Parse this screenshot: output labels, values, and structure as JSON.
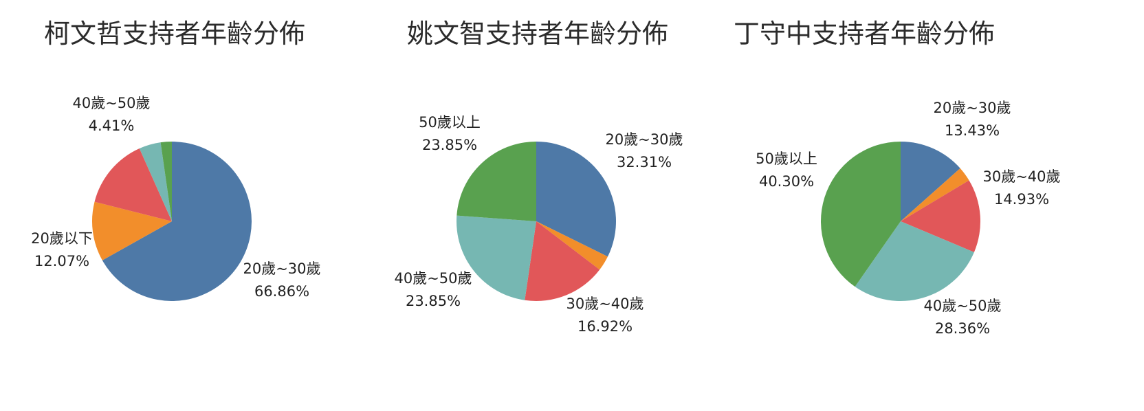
{
  "chart_data": [
    {
      "type": "pie",
      "title": "柯文哲支持者年齡分佈",
      "colors": [
        "#4e79a7",
        "#f28e2b",
        "#e15759",
        "#76b7b2",
        "#59a14f"
      ],
      "slices": [
        {
          "name": "20歲~30歲",
          "value": 66.86,
          "value_label": "66.86%",
          "color": "#4e79a7",
          "labeled": true
        },
        {
          "name": "20歲以下",
          "value": 12.07,
          "value_label": "12.07%",
          "color": "#f28e2b",
          "labeled": true
        },
        {
          "name": "",
          "value": 14.4,
          "value_label": "",
          "color": "#e15759",
          "labeled": false
        },
        {
          "name": "40歲~50歲",
          "value": 4.41,
          "value_label": "4.41%",
          "color": "#76b7b2",
          "labeled": true
        },
        {
          "name": "",
          "value": 2.26,
          "value_label": "",
          "color": "#59a14f",
          "labeled": false
        }
      ]
    },
    {
      "type": "pie",
      "title": "姚文智支持者年齡分佈",
      "colors": [
        "#4e79a7",
        "#f28e2b",
        "#e15759",
        "#76b7b2",
        "#59a14f"
      ],
      "slices": [
        {
          "name": "20歲~30歲",
          "value": 32.31,
          "value_label": "32.31%",
          "color": "#4e79a7",
          "labeled": true
        },
        {
          "name": "",
          "value": 3.07,
          "value_label": "",
          "color": "#f28e2b",
          "labeled": false
        },
        {
          "name": "30歲~40歲",
          "value": 16.92,
          "value_label": "16.92%",
          "color": "#e15759",
          "labeled": true
        },
        {
          "name": "40歲~50歲",
          "value": 23.85,
          "value_label": "23.85%",
          "color": "#76b7b2",
          "labeled": true
        },
        {
          "name": "50歲以上",
          "value": 23.85,
          "value_label": "23.85%",
          "color": "#59a14f",
          "labeled": true
        }
      ]
    },
    {
      "type": "pie",
      "title": "丁守中支持者年齡分佈",
      "colors": [
        "#4e79a7",
        "#f28e2b",
        "#e15759",
        "#76b7b2",
        "#59a14f"
      ],
      "slices": [
        {
          "name": "20歲~30歲",
          "value": 13.43,
          "value_label": "13.43%",
          "color": "#4e79a7",
          "labeled": true
        },
        {
          "name": "",
          "value": 2.98,
          "value_label": "",
          "color": "#f28e2b",
          "labeled": false
        },
        {
          "name": "30歲~40歲",
          "value": 14.93,
          "value_label": "14.93%",
          "color": "#e15759",
          "labeled": true
        },
        {
          "name": "40歲~50歲",
          "value": 28.36,
          "value_label": "28.36%",
          "color": "#76b7b2",
          "labeled": true
        },
        {
          "name": "50歲以上",
          "value": 40.3,
          "value_label": "40.30%",
          "color": "#59a14f",
          "labeled": true
        }
      ]
    }
  ]
}
